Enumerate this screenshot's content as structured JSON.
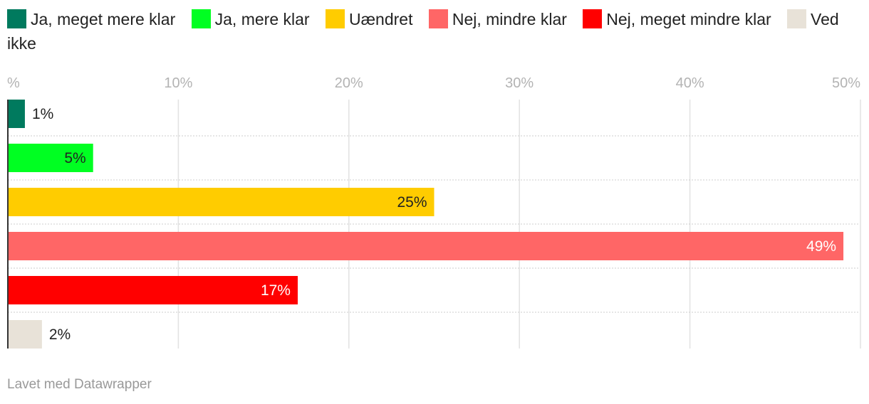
{
  "chart_data": {
    "type": "bar",
    "orientation": "horizontal",
    "stacked": false,
    "title": "",
    "xlabel": "",
    "ylabel": "",
    "axis_unit_label": "%",
    "xlim": [
      0,
      50
    ],
    "xticks": [
      0,
      10,
      20,
      30,
      40,
      50
    ],
    "tick_labels": [
      "%",
      "10%",
      "20%",
      "30%",
      "40%",
      "50%"
    ],
    "grid": true,
    "legend_position": "top",
    "series": [
      {
        "name": "Ja, meget mere klar",
        "value": 1,
        "label": "1%",
        "color": "#007a5e",
        "label_inside": false,
        "label_color": "#222222"
      },
      {
        "name": "Ja, mere klar",
        "value": 5,
        "label": "5%",
        "color": "#00ff22",
        "label_inside": true,
        "label_color": "#222222"
      },
      {
        "name": "Uændret",
        "value": 25,
        "label": "25%",
        "color": "#ffcc00",
        "label_inside": true,
        "label_color": "#222222"
      },
      {
        "name": "Nej, mindre klar",
        "value": 49,
        "label": "49%",
        "color": "#ff6666",
        "label_inside": true,
        "label_color": "#ffffff"
      },
      {
        "name": "Nej, meget mindre klar",
        "value": 17,
        "label": "17%",
        "color": "#ff0000",
        "label_inside": true,
        "label_color": "#ffffff"
      },
      {
        "name": "Ved ikke",
        "value": 2,
        "label": "2%",
        "color": "#e8e2d8",
        "label_inside": false,
        "label_color": "#222222"
      }
    ]
  },
  "footer": {
    "credit": "Lavet med Datawrapper"
  }
}
